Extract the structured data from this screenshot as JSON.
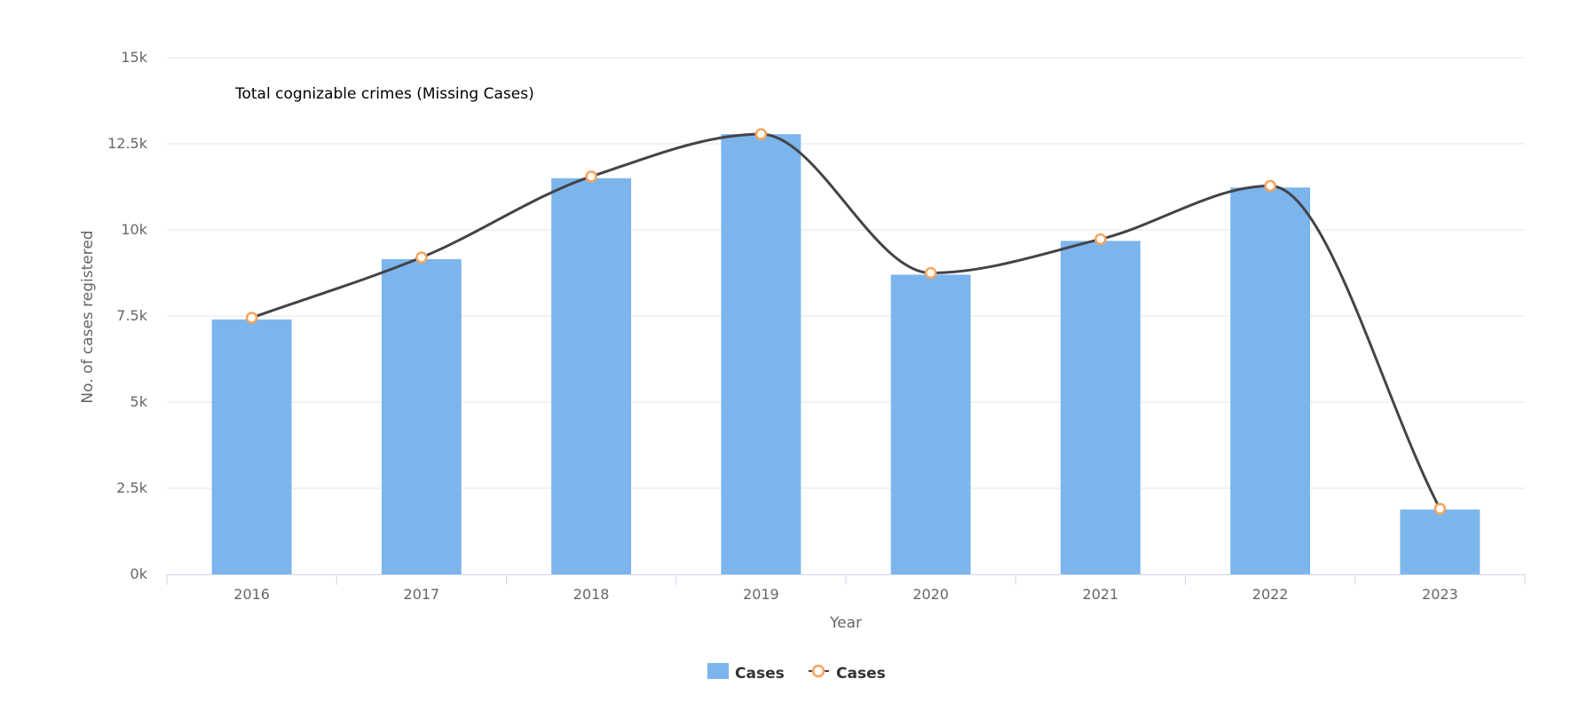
{
  "chart_data": {
    "type": "bar",
    "title": "Total cognizable crimes (Missing Cases)",
    "xlabel": "Year",
    "ylabel": "No. of cases registered",
    "categories": [
      "2016",
      "2017",
      "2018",
      "2019",
      "2020",
      "2021",
      "2022",
      "2023"
    ],
    "y_ticks": [
      "0k",
      "2.5k",
      "5k",
      "7.5k",
      "10k",
      "12.5k",
      "15k"
    ],
    "ylim": [
      0,
      15000
    ],
    "grid": true,
    "legend_position": "bottom-center",
    "series": [
      {
        "name": "Cases",
        "type": "bar",
        "color": "#7cb5ec",
        "values": [
          7400,
          9150,
          11500,
          12780,
          8700,
          9680,
          11230,
          1880
        ]
      },
      {
        "name": "Cases",
        "type": "spline",
        "line_color": "#434348",
        "marker_color": "#f7a35c",
        "values": [
          7450,
          9200,
          11550,
          12780,
          8750,
          9730,
          11280,
          1900
        ]
      }
    ]
  }
}
